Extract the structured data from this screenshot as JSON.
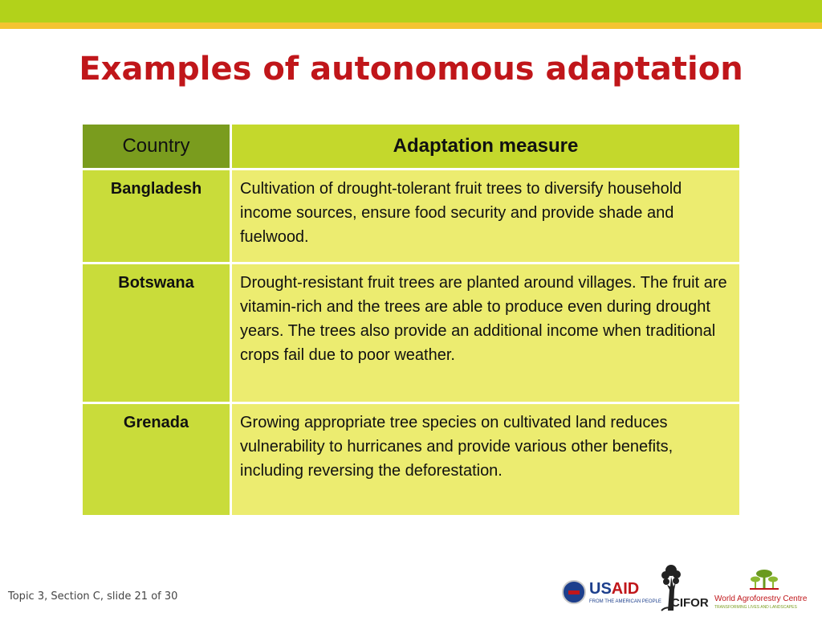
{
  "slide": {
    "title": "Examples of autonomous adaptation"
  },
  "table": {
    "headers": [
      "Country",
      "Adaptation measure"
    ],
    "rows": [
      {
        "country": "Bangladesh",
        "measure": "Cultivation of drought-tolerant fruit trees to diversify household income sources, ensure food security and provide shade and fuelwood."
      },
      {
        "country": "Botswana",
        "measure": "Drought-resistant fruit trees are planted around villages. The fruit are vitamin-rich and the trees are able to produce even during drought years. The trees also provide an additional income when traditional crops fail due to poor weather."
      },
      {
        "country": "Grenada",
        "measure": "Growing appropriate tree species on cultivated land reduces vulnerability to hurricanes and provide various other benefits, including reversing the deforestation."
      }
    ]
  },
  "footer": {
    "slide_info": "Topic 3, Section C, slide 21 of 30"
  },
  "logos": {
    "usaid": {
      "us": "US",
      "aid": "AID",
      "tagline": "FROM THE AMERICAN PEOPLE"
    },
    "cifor": {
      "name": "CIFOR"
    },
    "icraf": {
      "name": "World Agroforestry Centre",
      "tagline": "TRANSFORMING LIVES AND LANDSCAPES"
    }
  },
  "colors": {
    "title_red": "#c0161a",
    "band_green": "#b2d21a",
    "band_yellow": "#f4c430",
    "header_country": "#7a9c1e",
    "header_measure": "#c4d82c",
    "cell_country": "#c9dc3a",
    "cell_measure": "#ecec70"
  }
}
